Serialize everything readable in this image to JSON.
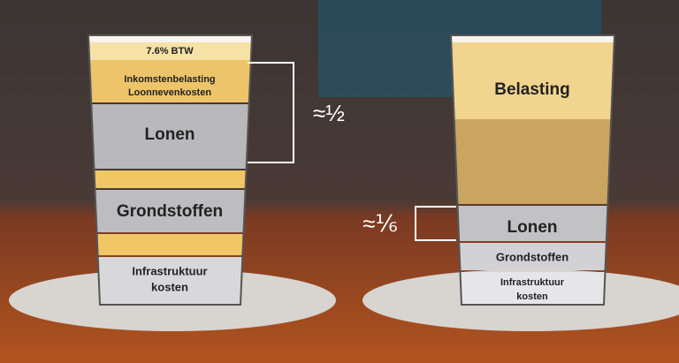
{
  "left_glass": {
    "btw": "7.6% BTW",
    "income_tax": [
      "Inkomstenbelasting",
      "Loonnevenkosten"
    ],
    "wages": "Lonen",
    "raw_materials": "Grondstoffen",
    "infrastructure": [
      "Infrastruktuur",
      "kosten"
    ]
  },
  "left_annotation": "≈½",
  "right_glass": {
    "tax": "Belasting",
    "wages": "Lonen",
    "raw_materials": "Grondstoffen",
    "infrastructure": [
      "Infrastruktuur",
      "kosten"
    ]
  },
  "right_annotation": "≈⅙"
}
